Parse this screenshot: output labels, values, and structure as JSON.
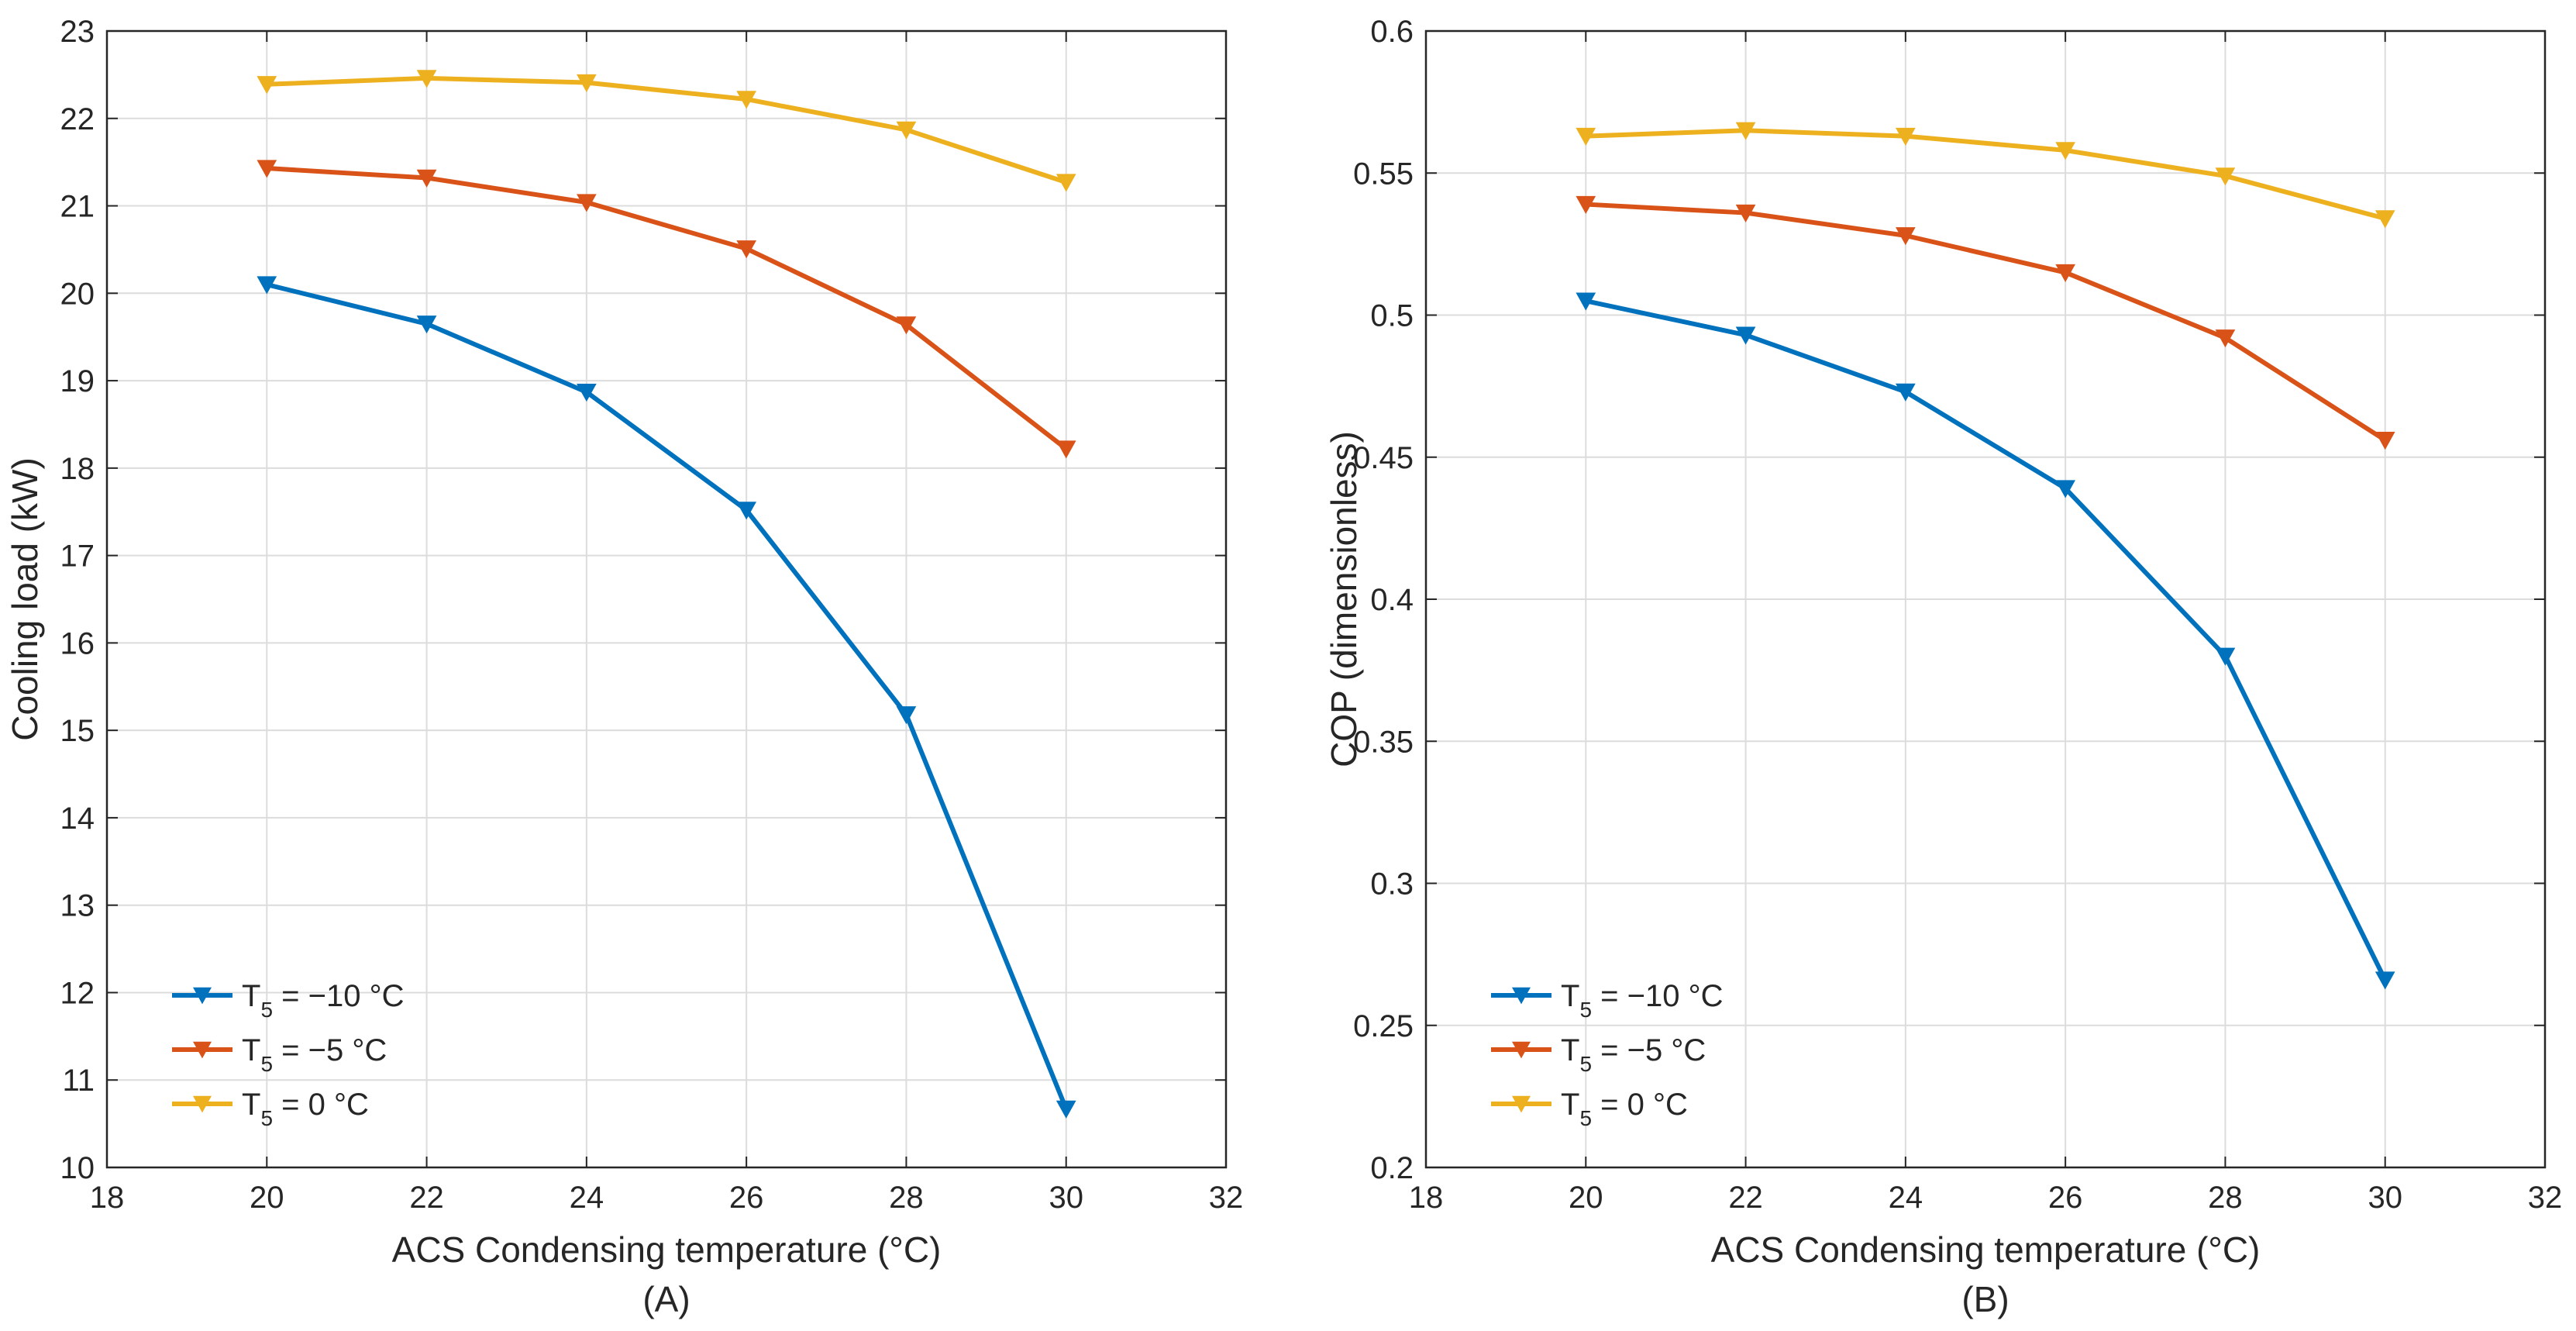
{
  "chart_data": [
    {
      "type": "line",
      "panel_label": "(A)",
      "xlabel": "ACS Condensing temperature (°C)",
      "ylabel": "Cooling load (kW)",
      "xlim": [
        18,
        32
      ],
      "ylim": [
        10,
        23
      ],
      "xticks": [
        18,
        20,
        22,
        24,
        26,
        28,
        30,
        32
      ],
      "yticks": [
        10,
        11,
        12,
        13,
        14,
        15,
        16,
        17,
        18,
        19,
        20,
        21,
        22,
        23
      ],
      "grid": true,
      "legend_position": "bottom-left",
      "x": [
        20,
        22,
        24,
        26,
        28,
        30
      ],
      "series": [
        {
          "name": "T5 = −10 °C",
          "legend_main": "T",
          "legend_sub": "5",
          "legend_rest": " = −10 °C",
          "color": "#0072BD",
          "values": [
            20.1,
            19.65,
            18.87,
            17.52,
            15.18,
            10.67
          ]
        },
        {
          "name": "T5 = −5 °C",
          "legend_main": "T",
          "legend_sub": "5",
          "legend_rest": " = −5 °C",
          "color": "#D95319",
          "values": [
            21.43,
            21.32,
            21.04,
            20.51,
            19.64,
            18.22
          ]
        },
        {
          "name": "T5 = 0 °C",
          "legend_main": "T",
          "legend_sub": "5",
          "legend_rest": " = 0 °C",
          "color": "#EDB120",
          "values": [
            22.39,
            22.46,
            22.41,
            22.22,
            21.87,
            21.27
          ]
        }
      ]
    },
    {
      "type": "line",
      "panel_label": "(B)",
      "xlabel": "ACS Condensing temperature (°C)",
      "ylabel": "COP (dimensionless)",
      "xlim": [
        18,
        32
      ],
      "ylim": [
        0.2,
        0.6
      ],
      "xticks": [
        18,
        20,
        22,
        24,
        26,
        28,
        30,
        32
      ],
      "yticks": [
        0.2,
        0.25,
        0.3,
        0.35,
        0.4,
        0.45,
        0.5,
        0.55,
        0.6
      ],
      "ytick_labels": [
        "0.2",
        "0.25",
        "0.3",
        "0.35",
        "0.4",
        "0.45",
        "0.5",
        "0.55",
        "0.6"
      ],
      "grid": true,
      "legend_position": "bottom-left",
      "x": [
        20,
        22,
        24,
        26,
        28,
        30
      ],
      "series": [
        {
          "name": "T5 = −10 °C",
          "legend_main": "T",
          "legend_sub": "5",
          "legend_rest": " = −10 °C",
          "color": "#0072BD",
          "values": [
            0.505,
            0.493,
            0.473,
            0.439,
            0.38,
            0.266
          ]
        },
        {
          "name": "T5 = −5 °C",
          "legend_main": "T",
          "legend_sub": "5",
          "legend_rest": " = −5 °C",
          "color": "#D95319",
          "values": [
            0.539,
            0.536,
            0.528,
            0.515,
            0.492,
            0.456
          ]
        },
        {
          "name": "T5 = 0 °C",
          "legend_main": "T",
          "legend_sub": "5",
          "legend_rest": " = 0 °C",
          "color": "#EDB120",
          "values": [
            0.563,
            0.565,
            0.563,
            0.558,
            0.549,
            0.534
          ]
        }
      ]
    }
  ]
}
